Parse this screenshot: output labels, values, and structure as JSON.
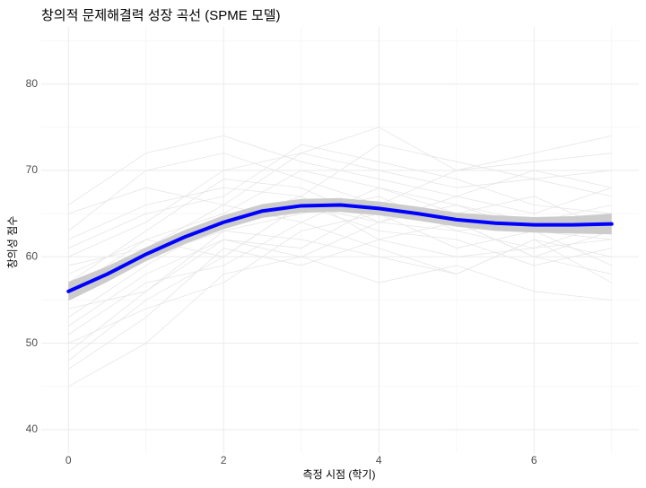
{
  "chart_data": {
    "type": "line",
    "title": "창의적 문제해결력 성장 곡선 (SPME 모델)",
    "x_label": "측정 시점 (학기)",
    "y_label": "창의성 점수",
    "xlim": [
      -0.35,
      7.35
    ],
    "ylim": [
      37.3,
      86.6
    ],
    "xticks": [
      0,
      2,
      4,
      6
    ],
    "yticks": [
      40,
      50,
      60,
      70,
      80
    ],
    "xminor_ticks": [
      1,
      3,
      5,
      7
    ],
    "yminor_ticks": [
      45,
      55,
      65,
      75,
      85
    ],
    "grid": true,
    "trajectory_color": "#e6e6e6",
    "trajectory_x": [
      0,
      1,
      2,
      3,
      4,
      5,
      6,
      7
    ],
    "trajectories": [
      [
        48,
        55,
        60,
        66,
        64,
        63,
        61,
        62
      ],
      [
        60,
        64,
        70,
        72,
        70,
        68,
        69,
        67
      ],
      [
        52,
        58,
        62,
        61,
        66,
        64,
        60,
        63
      ],
      [
        65,
        68,
        66,
        72,
        75,
        70,
        72,
        74
      ],
      [
        45,
        50,
        58,
        60,
        57,
        59,
        56,
        55
      ],
      [
        58,
        62,
        65,
        70,
        68,
        66,
        64,
        66
      ],
      [
        55,
        60,
        63,
        62,
        60,
        58,
        62,
        60
      ],
      [
        62,
        66,
        68,
        67,
        73,
        71,
        69,
        70
      ],
      [
        50,
        54,
        57,
        63,
        65,
        61,
        63,
        59
      ],
      [
        57,
        63,
        69,
        68,
        64,
        67,
        65,
        68
      ],
      [
        53,
        59,
        64,
        67,
        62,
        60,
        61,
        64
      ],
      [
        61,
        65,
        67,
        73,
        71,
        69,
        66,
        65
      ],
      [
        47,
        53,
        61,
        59,
        62,
        64,
        60,
        58
      ],
      [
        59,
        61,
        66,
        64,
        68,
        65,
        67,
        63
      ],
      [
        56,
        62,
        60,
        66,
        63,
        62,
        59,
        61
      ],
      [
        63,
        70,
        72,
        69,
        66,
        70,
        71,
        72
      ],
      [
        51,
        57,
        59,
        64,
        61,
        58,
        62,
        57
      ],
      [
        54,
        56,
        63,
        65,
        67,
        63,
        64,
        65
      ],
      [
        66,
        72,
        74,
        71,
        69,
        67,
        70,
        68
      ],
      [
        49,
        56,
        62,
        60,
        64,
        66,
        63,
        62
      ]
    ],
    "x": [
      0,
      0.5,
      1,
      1.5,
      2,
      2.5,
      3,
      3.5,
      4,
      4.5,
      5,
      5.5,
      6,
      6.5,
      7
    ],
    "series": [
      {
        "color": "#0000ff",
        "values": [
          56,
          58,
          60.3,
          62.3,
          64,
          65.3,
          65.9,
          66,
          65.6,
          65,
          64.3,
          63.9,
          63.7,
          63.7,
          63.8
        ]
      }
    ],
    "band_color": "#cccccc",
    "band_lower": [
      54.9,
      57.1,
      59.5,
      61.5,
      63.2,
      64.5,
      65.1,
      65.2,
      64.8,
      64.2,
      63.5,
      63.0,
      62.8,
      62.7,
      62.6
    ],
    "band_upper": [
      57.1,
      58.9,
      61.1,
      63.1,
      64.8,
      66.1,
      66.7,
      66.8,
      66.4,
      65.8,
      65.1,
      64.8,
      64.6,
      64.7,
      65.0
    ]
  }
}
